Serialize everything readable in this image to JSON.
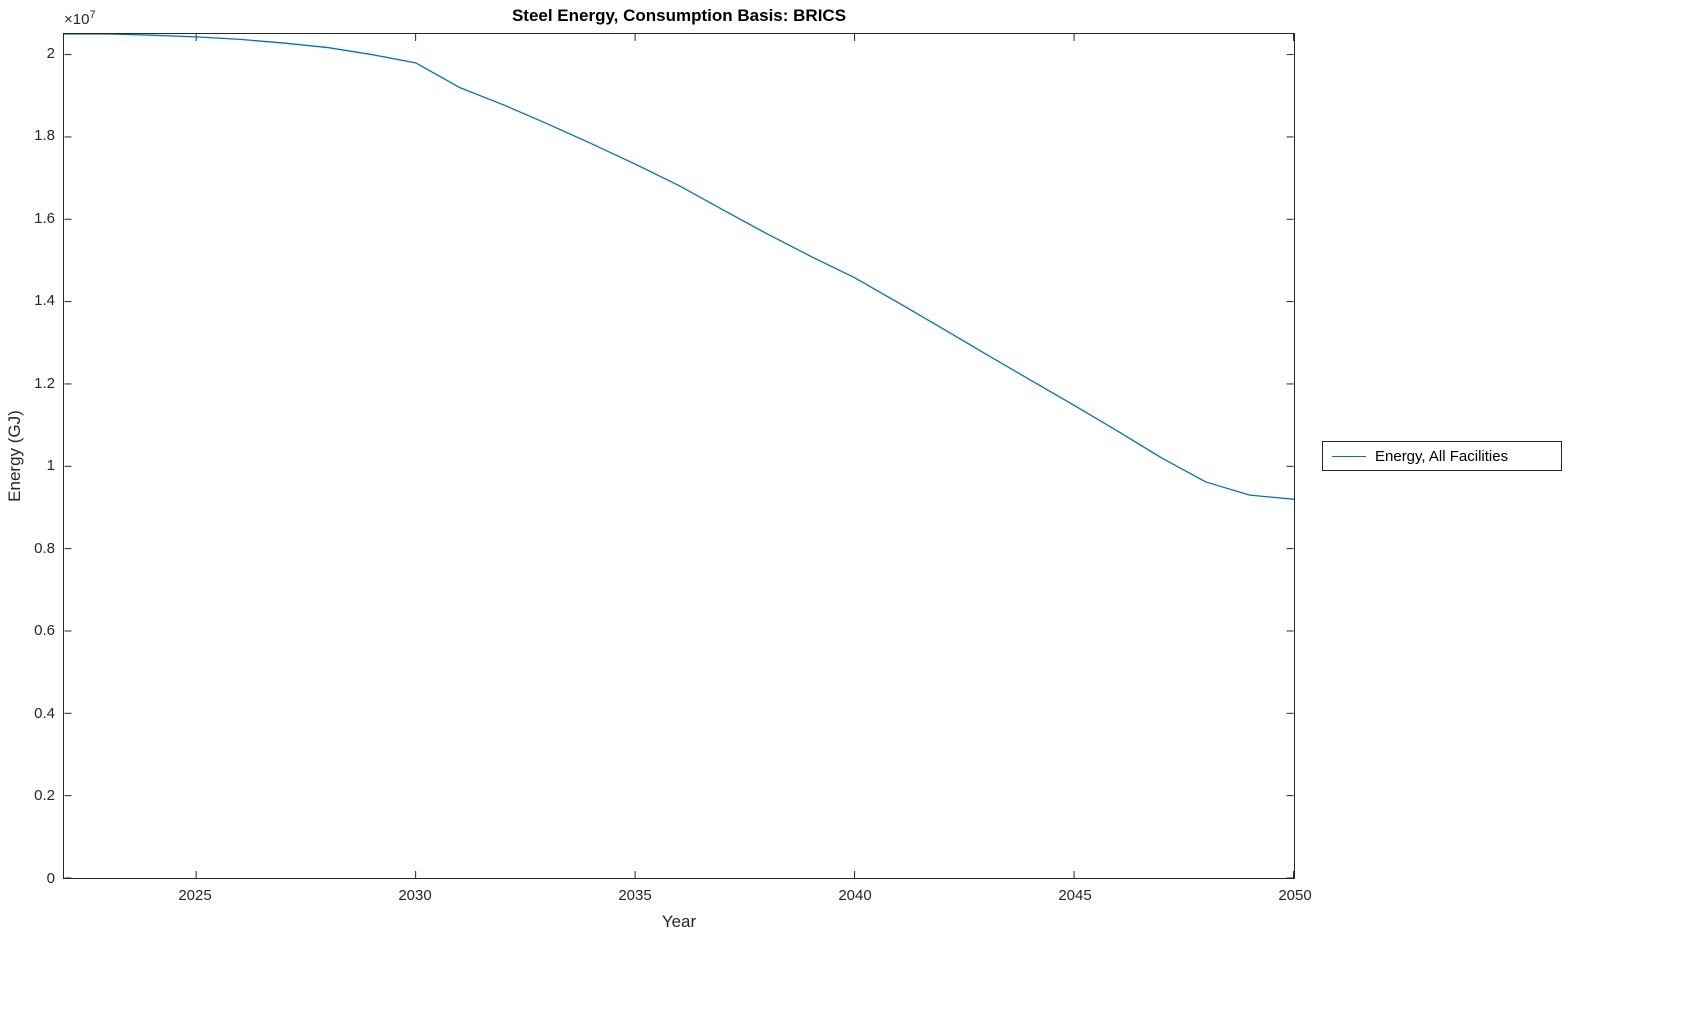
{
  "title": "Steel Energy, Consumption Basis: BRICS",
  "x_axis": {
    "label": "Year",
    "tick_labels": [
      "2025",
      "2030",
      "2035",
      "2040",
      "2045",
      "2050"
    ]
  },
  "y_axis": {
    "label": "Energy (GJ)",
    "tick_labels": [
      "0",
      "0.2",
      "0.4",
      "0.6",
      "0.8",
      "1",
      "1.2",
      "1.4",
      "1.6",
      "1.8",
      "2"
    ],
    "multiplier_prefix": "×10",
    "multiplier_exponent": "7"
  },
  "legend": {
    "entries": [
      {
        "label": "Energy, All Facilities",
        "color": "#0072BD"
      }
    ]
  },
  "chart_data": {
    "type": "line",
    "title": "Steel Energy, Consumption Basis: BRICS",
    "xlabel": "Year",
    "ylabel": "Energy (GJ)",
    "xlim": [
      2022,
      2050
    ],
    "ylim": [
      0,
      20500000
    ],
    "xticks": [
      2025,
      2030,
      2035,
      2040,
      2045,
      2050
    ],
    "yticks": [
      0,
      2000000,
      4000000,
      6000000,
      8000000,
      10000000,
      12000000,
      14000000,
      16000000,
      18000000,
      20000000
    ],
    "grid": false,
    "legend_position": "right-outside",
    "series": [
      {
        "name": "Energy, All Facilities",
        "color": "#0072BD",
        "x": [
          2022,
          2023,
          2024,
          2025,
          2026,
          2027,
          2028,
          2029,
          2030,
          2031,
          2032,
          2033,
          2034,
          2035,
          2036,
          2037,
          2038,
          2039,
          2040,
          2041,
          2042,
          2043,
          2044,
          2045,
          2046,
          2047,
          2048,
          2049,
          2050
        ],
        "y": [
          20500000,
          20500000,
          20470000,
          20430000,
          20370000,
          20280000,
          20170000,
          20000000,
          19800000,
          19200000,
          18780000,
          18320000,
          17840000,
          17340000,
          16820000,
          16230000,
          15650000,
          15100000,
          14580000,
          13970000,
          13350000,
          12720000,
          12100000,
          11480000,
          10850000,
          10200000,
          9620000,
          9300000,
          9200000
        ]
      }
    ]
  }
}
